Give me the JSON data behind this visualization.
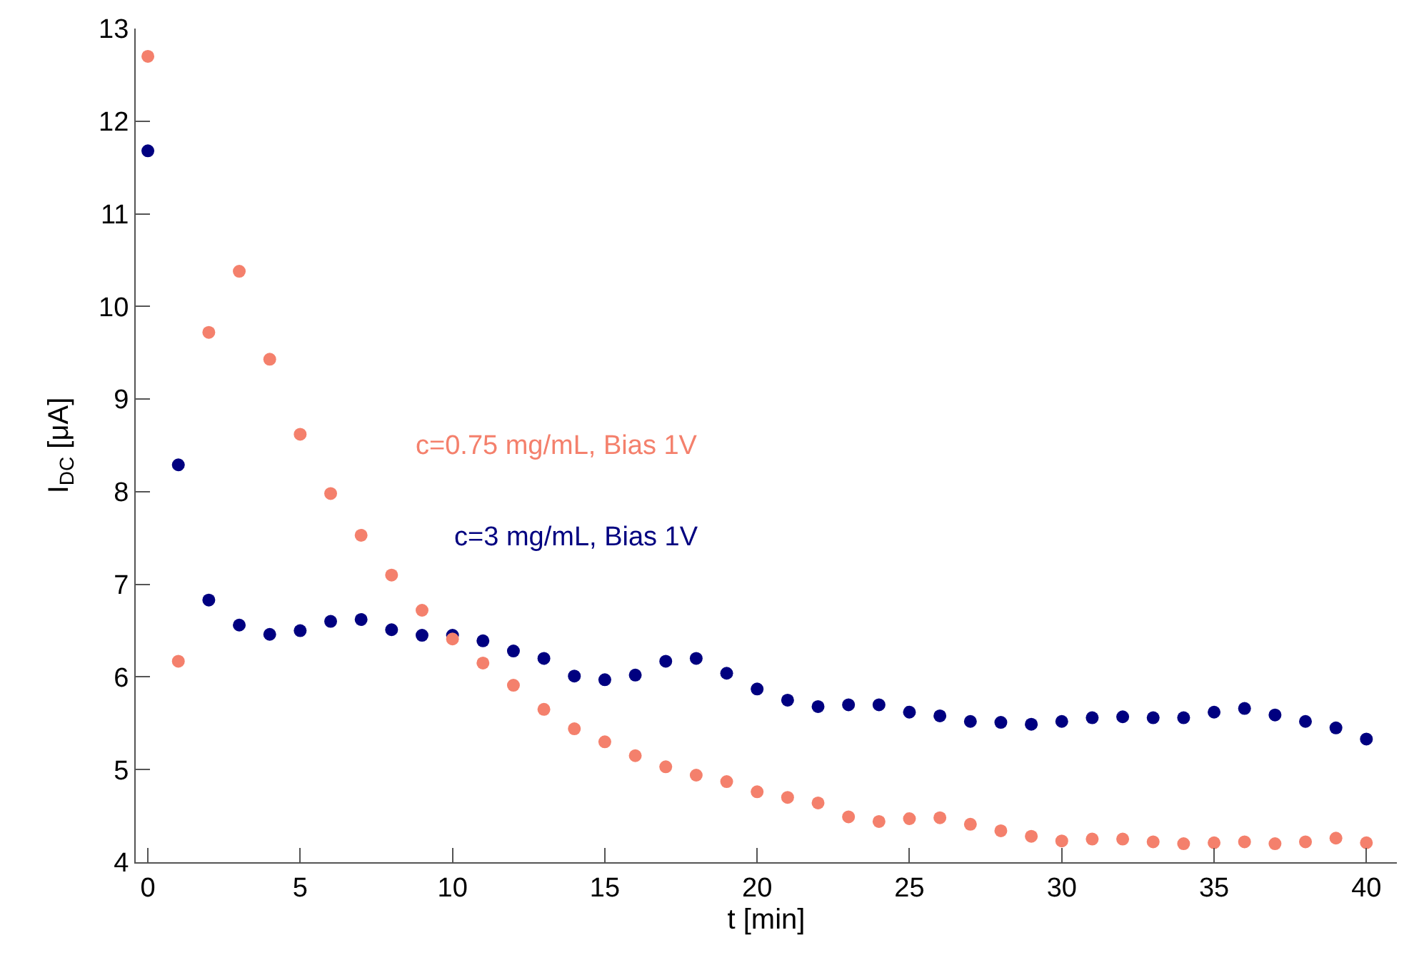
{
  "chart_data": {
    "type": "scatter",
    "xlabel": "t [min]",
    "ylabel": "I$_{DC}$ [μA]",
    "x": [
      0,
      1,
      2,
      3,
      4,
      5,
      6,
      7,
      8,
      9,
      10,
      11,
      12,
      13,
      14,
      15,
      16,
      17,
      18,
      19,
      20,
      21,
      22,
      23,
      24,
      25,
      26,
      27,
      28,
      29,
      30,
      31,
      32,
      33,
      34,
      35,
      36,
      37,
      38,
      39,
      40
    ],
    "series": [
      {
        "name": "c=0.75 mg/mL, Bias 1V",
        "color": "#f4806c",
        "values": [
          12.7,
          6.17,
          9.72,
          10.38,
          9.43,
          8.62,
          7.98,
          7.53,
          7.1,
          6.72,
          6.41,
          6.15,
          5.91,
          5.65,
          5.44,
          5.3,
          5.15,
          5.03,
          4.94,
          4.87,
          4.76,
          4.7,
          4.64,
          4.49,
          4.44,
          4.47,
          4.48,
          4.41,
          4.34,
          4.28,
          4.23,
          4.25,
          4.25,
          4.22,
          4.2,
          4.21,
          4.22,
          4.2,
          4.22,
          4.26,
          4.21
        ]
      },
      {
        "name": "c=3 mg/mL, Bias 1V",
        "color": "#000080",
        "values": [
          11.68,
          8.29,
          6.83,
          6.56,
          6.46,
          6.5,
          6.6,
          6.62,
          6.51,
          6.45,
          6.45,
          6.39,
          6.28,
          6.2,
          6.01,
          5.97,
          6.02,
          6.17,
          6.2,
          6.04,
          5.87,
          5.75,
          5.68,
          5.7,
          5.7,
          5.62,
          5.58,
          5.52,
          5.51,
          5.49,
          5.52,
          5.56,
          5.57,
          5.56,
          5.56,
          5.62,
          5.66,
          5.59,
          5.52,
          5.45,
          5.33
        ]
      }
    ],
    "xlim": [
      -0.4,
      41
    ],
    "xticks": [
      0,
      5,
      10,
      15,
      20,
      25,
      30,
      35,
      40
    ],
    "ylim": [
      4,
      13
    ],
    "yticks": [
      4,
      5,
      6,
      7,
      8,
      9,
      10,
      11,
      12,
      13
    ],
    "legend": false,
    "marker": "circle"
  }
}
